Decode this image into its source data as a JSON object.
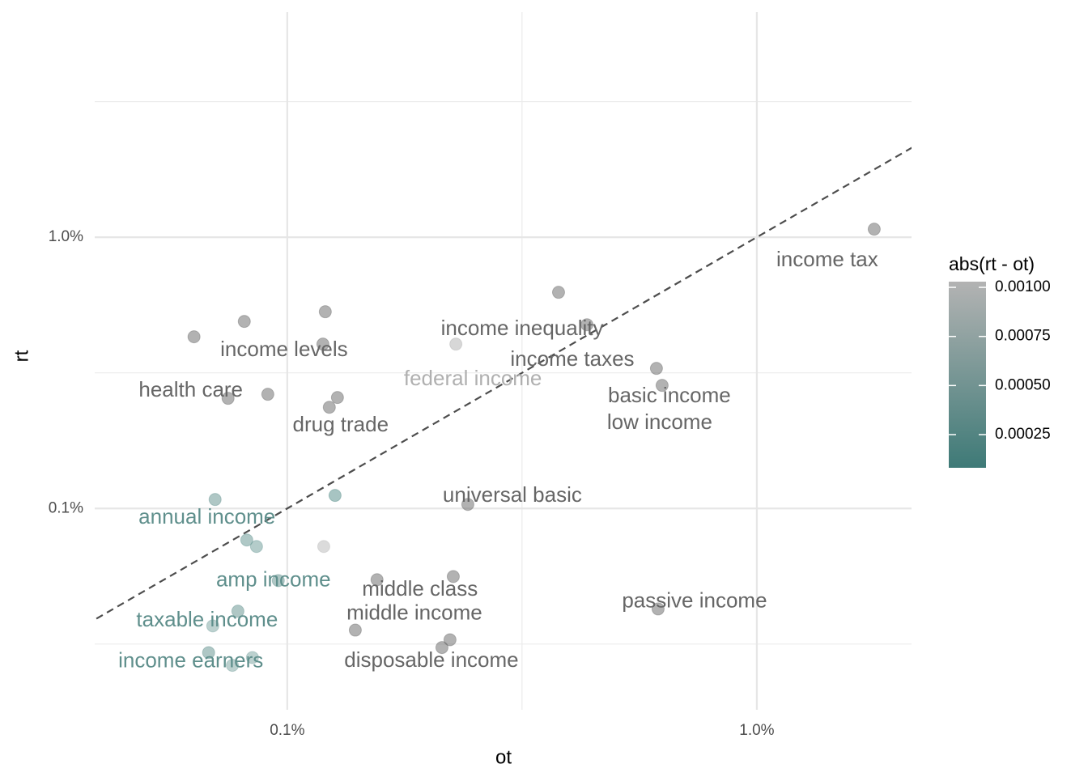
{
  "chart_data": {
    "type": "scatter",
    "x_label": "ot",
    "y_label": "rt",
    "log_x": true,
    "log_y": true,
    "grid": true,
    "xlim": [
      0.000389,
      0.02135
    ],
    "ylim": [
      0.000181,
      0.0676
    ],
    "xticks": [
      {
        "value": 0.001,
        "label": "0.1%"
      },
      {
        "value": 0.01,
        "label": "1.0%"
      }
    ],
    "yticks": [
      {
        "value": 0.001,
        "label": "0.1%"
      },
      {
        "value": 0.01,
        "label": "1.0%"
      }
    ],
    "x_minor_grid": [
      0.003162
    ],
    "y_minor_grid": [
      0.03162,
      0.003162,
      0.0003162
    ],
    "x": [
      0.01778,
      0.003782,
      0.004347,
      0.006112,
      0.006284,
      0.002286,
      0.000633,
      0.00081,
      0.001205,
      0.001191,
      0.000748,
      0.000909,
      0.001279,
      0.001229,
      0.002424,
      0.000702,
      0.001264,
      0.00082,
      0.00086,
      0.001196,
      0.000957,
      0.001553,
      0.002257,
      0.006162,
      0.000785,
      0.000694,
      0.001396,
      0.002221,
      0.002135,
      0.00068,
      0.000843,
      0.000764
    ],
    "y": [
      0.01071,
      0.006266,
      0.004759,
      0.003284,
      0.002843,
      0.004036,
      0.004295,
      0.004893,
      0.005313,
      0.004036,
      0.002547,
      0.002636,
      0.002565,
      0.002361,
      0.001035,
      0.001079,
      0.001117,
      0.000765,
      0.000724,
      0.000724,
      0.000542,
      0.000546,
      0.000561,
      0.000426,
      0.000418,
      0.000369,
      0.000356,
      0.000328,
      0.000307,
      0.000294,
      0.000282,
      0.000264
    ],
    "labels": [
      "income tax",
      "income taxes",
      "income inequality",
      "low income",
      "basic income",
      "federal income",
      null,
      null,
      null,
      "income levels",
      "health care",
      null,
      null,
      "drug trade",
      "universal basic",
      "annual income",
      null,
      null,
      null,
      null,
      "amp income",
      "middle class",
      null,
      "passive income",
      "taxable income",
      null,
      "middle income",
      null,
      "disposable income",
      "income earners",
      null,
      null
    ],
    "colors": [
      "#666666",
      "#666666",
      "#666666",
      "#666666",
      "#666666",
      "#b0b0b0",
      "#666666",
      "#666666",
      "#666666",
      "#666666",
      "#666666",
      "#666666",
      "#666666",
      "#666666",
      "#666666",
      "#5f8f8c",
      "#4f8985",
      "#5f918e",
      "#6a9996",
      "#b8b8b8",
      "#5f8f8c",
      "#666666",
      "#666666",
      "#666666",
      "#5f8f8c",
      "#7aa3a0",
      "#666666",
      "#666666",
      "#666666",
      "#5f8f8c",
      "#7aa3a0",
      "#7aa3a0"
    ],
    "colorbar": {
      "title": "abs(rt - ot)",
      "lim": [
        8.1e-05,
        0.001029
      ],
      "colors": [
        "#3e7a77",
        "#b3b3b3"
      ],
      "ticks": [
        0.00025,
        {
          "value": 0.0005,
          "label": "0.00050"
        },
        0.00075,
        {
          "value": 0.001,
          "label": "0.00100"
        }
      ]
    }
  }
}
